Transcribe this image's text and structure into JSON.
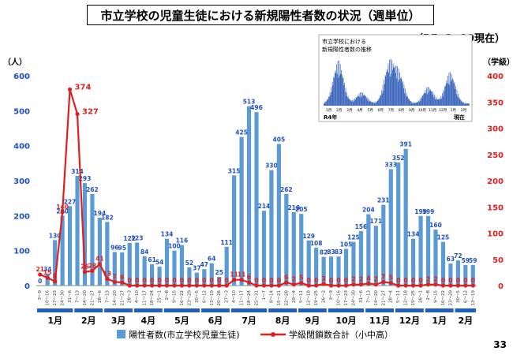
{
  "title": "市立学校の児童生徒における新規陽性者数の状況（週単位）",
  "date_note": "（R5. 2 .19現在）",
  "page_number": "33",
  "left_unit": "（人）",
  "right_unit": "（学級）",
  "legend": {
    "bar_label": "陽性者数(市立学校児童生徒)",
    "line_label": "学級閉鎖数合計（小中高）"
  },
  "inset": {
    "title_line1": "市立学校における",
    "title_line2": "新規陽性者数の推移",
    "month_labels": [
      "1月",
      "2月",
      "3月",
      "4月",
      "5月",
      "6月",
      "7月",
      "8月",
      "9月",
      "10月",
      "11月",
      "12月",
      "1月",
      "2月"
    ],
    "year_label": "R4年",
    "now_label": "現在"
  },
  "colors": {
    "bar": "#5b9bd5",
    "line": "#e02020",
    "left_axis": "#1f4fbf",
    "right_axis": "#e02020"
  },
  "chart_data": {
    "type": "bar",
    "title": "市立学校の児童生徒における新規陽性者数の状況（週単位）",
    "ylabel_left": "（人）",
    "ylabel_right": "（学級）",
    "ylim_left": [
      0,
      600
    ],
    "ylim_right": [
      0,
      400
    ],
    "yticks_left": [
      0,
      100,
      200,
      300,
      400,
      500,
      600
    ],
    "yticks_right": [
      0,
      50,
      100,
      150,
      200,
      250,
      300,
      350,
      400
    ],
    "grid": false,
    "legend_position": "bottom",
    "weeks": [
      "3～9",
      "10～16",
      "17～23",
      "24～30",
      "31～6",
      "7～13",
      "14～20",
      "21～27",
      "28～6",
      "7～13",
      "14～20",
      "21～27",
      "28～3",
      "4～10",
      "11～17",
      "18～24",
      "25～1",
      "2～8",
      "9～15",
      "16～22",
      "23～29",
      "30～5",
      "6～12",
      "13～19",
      "20～26",
      "27～3",
      "4～10",
      "11～17",
      "18～24",
      "25～31",
      "1～7",
      "8～14",
      "15～21",
      "22～28",
      "29～4",
      "5～11",
      "12～18",
      "19～25",
      "26～2",
      "3～9",
      "10～16",
      "17～23",
      "24～30",
      "31～6",
      "7～13",
      "14～20",
      "21～27",
      "28～4",
      "5～11",
      "12～18",
      "19～25",
      "26～1",
      "2～8",
      "9～15",
      "16～22",
      "23～29",
      "30～5",
      "6～12",
      "13～19"
    ],
    "months": [
      {
        "label": "1月",
        "start": 0,
        "end": 4
      },
      {
        "label": "2月",
        "start": 5,
        "end": 8
      },
      {
        "label": "3月",
        "start": 9,
        "end": 12
      },
      {
        "label": "4月",
        "start": 13,
        "end": 16
      },
      {
        "label": "5月",
        "start": 17,
        "end": 21
      },
      {
        "label": "6月",
        "start": 22,
        "end": 25
      },
      {
        "label": "7月",
        "start": 26,
        "end": 30
      },
      {
        "label": "8月",
        "start": 31,
        "end": 34
      },
      {
        "label": "9月",
        "start": 35,
        "end": 38
      },
      {
        "label": "10月",
        "start": 39,
        "end": 43
      },
      {
        "label": "11月",
        "start": 44,
        "end": 47
      },
      {
        "label": "12月",
        "start": 48,
        "end": 51
      },
      {
        "label": "1月",
        "start": 52,
        "end": 55
      },
      {
        "label": "2月",
        "start": 56,
        "end": 58
      }
    ],
    "series": [
      {
        "name": "陽性者数(市立学校児童生徒)",
        "axis": "left",
        "values": [
          0,
          34,
          130,
          200,
          227,
          314,
          293,
          262,
          194,
          182,
          96,
          95,
          122,
          123,
          84,
          61,
          54,
          134,
          100,
          116,
          52,
          37,
          47,
          64,
          25,
          111,
          315,
          425,
          513,
          496,
          214,
          330,
          405,
          262,
          210,
          205,
          129,
          108,
          82,
          83,
          83,
          105,
          125,
          156,
          204,
          171,
          231,
          333,
          352,
          391,
          134,
          199,
          199,
          160,
          125,
          63,
          72,
          59,
          59
        ]
      },
      {
        "name": "学級閉鎖数合計（小中高）",
        "axis": "right",
        "values": [
          21,
          15,
          8,
          140,
          374,
          327,
          26,
          28,
          41,
          13,
          7,
          6,
          0,
          0,
          0,
          0,
          0,
          0,
          0,
          0,
          0,
          0,
          0,
          0,
          0,
          0,
          11,
          11,
          6,
          0,
          0,
          0,
          0,
          6,
          2,
          5,
          0,
          0,
          3,
          0,
          0,
          0,
          2,
          2,
          4,
          2,
          7,
          5,
          0,
          0,
          0,
          0,
          2,
          2,
          0,
          0,
          0,
          0,
          0
        ]
      }
    ]
  }
}
